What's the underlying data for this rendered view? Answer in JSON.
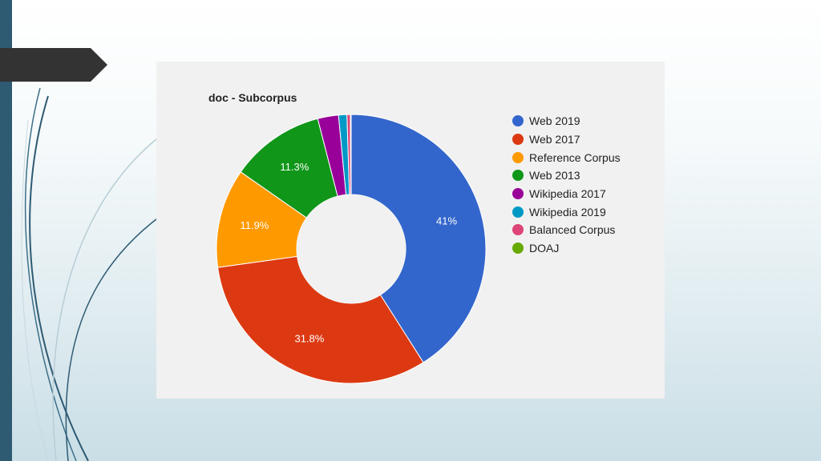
{
  "chart_data": {
    "type": "pie",
    "title": "doc - Subcorpus",
    "legend_position": "right",
    "donut": true,
    "categories": [
      "Web 2019",
      "Web 2017",
      "Reference Corpus",
      "Web 2013",
      "Wikipedia 2017",
      "Wikipedia 2019",
      "Balanced Corpus",
      "DOAJ"
    ],
    "values": [
      41,
      31.8,
      11.9,
      11.3,
      2.5,
      1.0,
      0.4,
      0.1
    ],
    "data_labels": [
      "41%",
      "31.8%",
      "11.9%",
      "11.3%",
      "",
      "",
      "",
      ""
    ],
    "colors": [
      "#3366cc",
      "#dc3912",
      "#ff9900",
      "#109618",
      "#990099",
      "#0099c6",
      "#dd4477",
      "#66aa00"
    ]
  }
}
